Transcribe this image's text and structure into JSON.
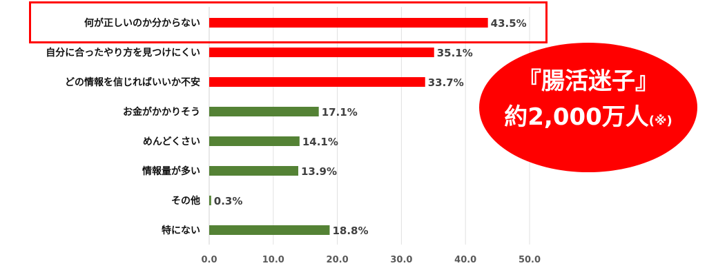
{
  "chart_data": {
    "type": "bar",
    "orientation": "horizontal",
    "categories": [
      "何が正しいのか分からない",
      "自分に合ったやり方を見つけにくい",
      "どの情報を信じればいいか不安",
      "お金がかかりそう",
      "めんどくさい",
      "情報量が多い",
      "その他",
      "特にない"
    ],
    "values": [
      43.5,
      35.1,
      33.7,
      17.1,
      14.1,
      13.9,
      0.3,
      18.8
    ],
    "value_labels": [
      "43.5%",
      "35.1%",
      "33.7%",
      "17.1%",
      "14.1%",
      "13.9%",
      "0.3%",
      "18.8%"
    ],
    "bar_colors": [
      "#ff0000",
      "#ff0000",
      "#ff0000",
      "#548235",
      "#548235",
      "#548235",
      "#548235",
      "#548235"
    ],
    "xlim": [
      0,
      50
    ],
    "ticks": [
      "0.0",
      "10.0",
      "20.0",
      "30.0",
      "40.0",
      "50.0"
    ],
    "tick_values": [
      0,
      10,
      20,
      30,
      40,
      50
    ],
    "grid": true
  },
  "callout": {
    "line1": "『腸活迷子』",
    "line2": "約2,000万人",
    "note": "(※)",
    "color": "#ff0000"
  }
}
